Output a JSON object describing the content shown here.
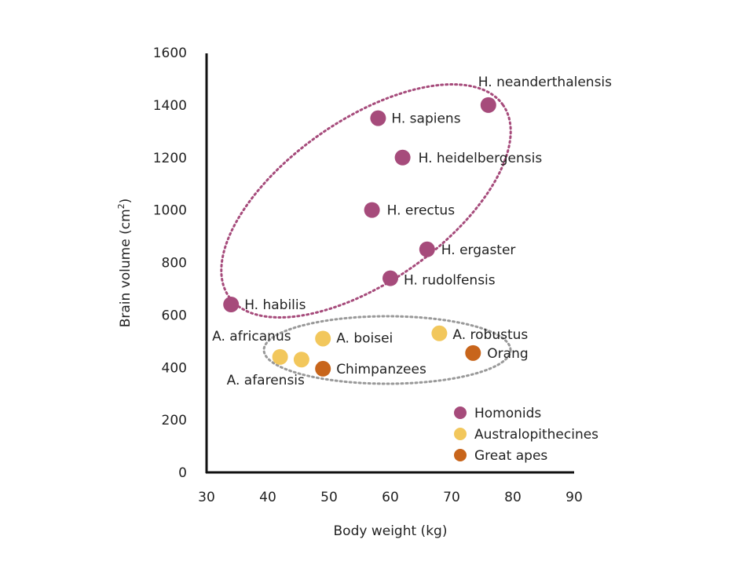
{
  "chart_data": {
    "type": "scatter",
    "title": "",
    "xlabel": "Body weight (kg)",
    "ylabel": "Brain volume (cm",
    "ylabel_sup": "2",
    "ylabel_close": ")",
    "xlim": [
      30,
      90
    ],
    "ylim": [
      0,
      1600
    ],
    "xticks": [
      "30",
      "40",
      "50",
      "60",
      "70",
      "80",
      "90"
    ],
    "yticks": [
      "0",
      "200",
      "400",
      "600",
      "800",
      "1000",
      "1200",
      "1400",
      "1600"
    ],
    "grid": false,
    "legend_position": "bottom-right",
    "series": [
      {
        "name": "Homonids",
        "color": "#a64b7b",
        "points": [
          {
            "label": "H. neanderthalensis",
            "x": 76,
            "y": 1400
          },
          {
            "label": "H. sapiens",
            "x": 58,
            "y": 1350
          },
          {
            "label": "H. heidelbergensis",
            "x": 62,
            "y": 1200
          },
          {
            "label": "H. erectus",
            "x": 57,
            "y": 1000
          },
          {
            "label": "H. ergaster",
            "x": 66,
            "y": 850
          },
          {
            "label": "H. rudolfensis",
            "x": 60,
            "y": 740
          },
          {
            "label": "H. habilis",
            "x": 34,
            "y": 640
          }
        ]
      },
      {
        "name": "Australopithecines",
        "color": "#f2c75c",
        "points": [
          {
            "label": "A. robustus",
            "x": 68,
            "y": 530
          },
          {
            "label": "A. boisei",
            "x": 49,
            "y": 510
          },
          {
            "label": "A. africanus",
            "x": 42,
            "y": 440
          },
          {
            "label": "A. afarensis",
            "x": 45.5,
            "y": 430
          }
        ]
      },
      {
        "name": "Great apes",
        "color": "#c8651b",
        "points": [
          {
            "label": "Orang",
            "x": 73.5,
            "y": 455
          },
          {
            "label": "Chimpanzees",
            "x": 49,
            "y": 395
          }
        ]
      }
    ]
  }
}
